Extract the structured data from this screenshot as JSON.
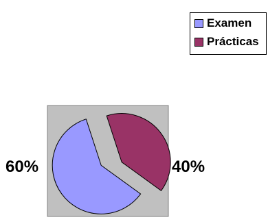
{
  "chart_data": {
    "type": "pie",
    "exploded": true,
    "categories": [
      "Examen",
      "Prácticas"
    ],
    "values": [
      60,
      40
    ],
    "data_labels": [
      "60%",
      "40%"
    ],
    "colors": [
      "#9999ff",
      "#993366"
    ],
    "plot_area_fill": "#c0c0c0",
    "legend": {
      "position": "top-right",
      "entries": [
        "Examen",
        "Prácticas"
      ]
    }
  }
}
